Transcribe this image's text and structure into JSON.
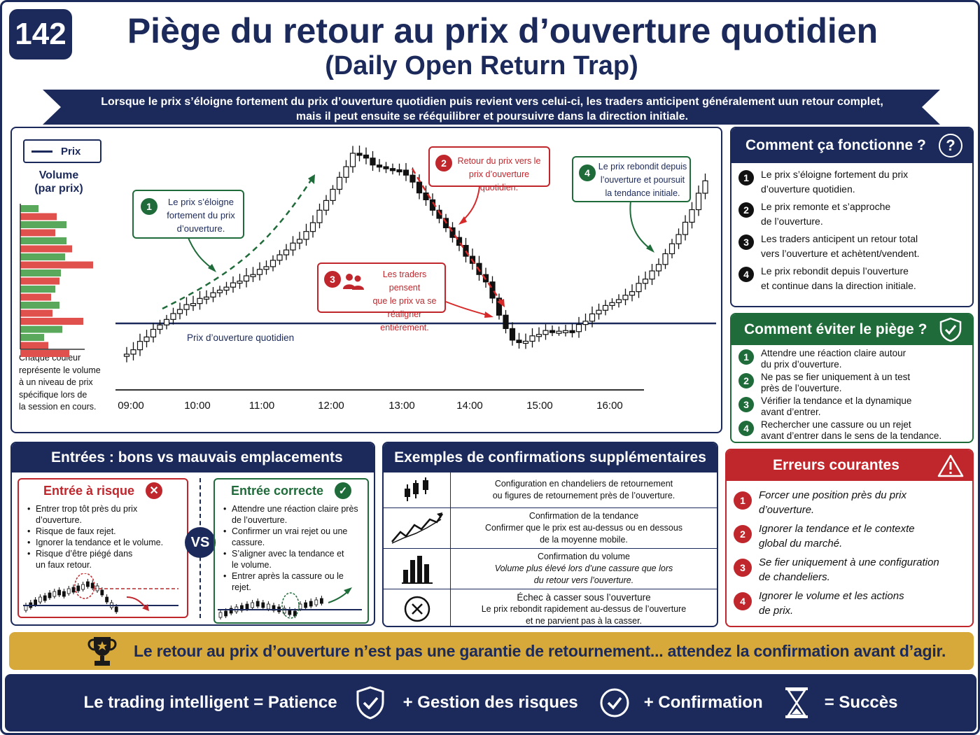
{
  "header": {
    "number": "142",
    "title": "Piège du retour au prix d’ouverture quotidien",
    "subtitle": "(Daily Open Return Trap)",
    "intro_line1": "Lorsque le prix s’éloigne fortement du prix d’ouverture quotidien puis revient vers celui-ci, les traders anticipent généralement uun retour complet,",
    "intro_line2": "mais il peut ensuite se rééquilibrer et poursuivre dans la direction initiale."
  },
  "chart": {
    "legend_label": "Prix",
    "volume_title_1": "Volume",
    "volume_title_2": "(par prix)",
    "volume_note": [
      "Chaque couleur",
      "représente le volume",
      "à un niveau de prix",
      "spécifique lors de",
      "la session en cours."
    ],
    "open_line_label": "Prix d’ouverture quotidien",
    "time_labels": [
      "09:00",
      "10:00",
      "11:00",
      "12:00",
      "13:00",
      "14:00",
      "15:00",
      "16:00"
    ],
    "callouts": [
      {
        "n": "1",
        "lines": [
          "Le prix s’éloigne",
          "fortement du prix",
          "d’ouverture."
        ]
      },
      {
        "n": "2",
        "lines": [
          "Retour du prix vers le",
          "prix d’ouverture quotidien."
        ]
      },
      {
        "n": "3",
        "lines": [
          "Les traders pensent",
          "que le prix va se",
          "réaligner entièrement."
        ]
      },
      {
        "n": "4",
        "lines": [
          "Le prix rebondit depuis",
          "l’ouverture et poursuit",
          "la tendance initiale."
        ]
      }
    ]
  },
  "how": {
    "title": "Comment ça fonctionne ?",
    "items": [
      {
        "n": "1",
        "l1": "Le prix s’éloigne fortement du prix",
        "l2": "d’ouverture quotidien."
      },
      {
        "n": "2",
        "l1": "Le prix remonte et s’approche",
        "l2": "de l’ouverture."
      },
      {
        "n": "3",
        "l1": "Les traders anticipent un retour total",
        "l2": "vers l’ouverture et achètent/vendent."
      },
      {
        "n": "4",
        "l1": "Le prix rebondit depuis l’ouverture",
        "l2": "et continue dans la direction initiale."
      }
    ]
  },
  "avoid": {
    "title": "Comment éviter le piège ?",
    "items": [
      {
        "n": "1",
        "l1": "Attendre une réaction claire autour",
        "l2": "du prix d’ouverture."
      },
      {
        "n": "2",
        "l1": "Ne pas se fier uniquement à un test",
        "l2": "près de l’ouverture."
      },
      {
        "n": "3",
        "l1": "Vérifier la tendance et la dynamique",
        "l2": "avant d’entrer."
      },
      {
        "n": "4",
        "l1": "Rechercher une cassure ou un rejet",
        "l2": "avant d’entrer dans le sens de la tendance."
      }
    ]
  },
  "entries": {
    "title": "Entrées : bons vs mauvais emplacements",
    "bad_title": "Entrée à risque",
    "bad_items": [
      "Entrer trop tôt près du prix d’ouverture.",
      "Risque de faux rejet.",
      "Ignorer la tendance et le volume.",
      "Risque d’être piégé dans\nun faux retour."
    ],
    "vs": "VS",
    "good_title": "Entrée correcte",
    "good_items": [
      "Attendre une réaction claire près\nde l’ouverture.",
      "Confirmer un vrai rejet ou une\ncassure.",
      "S’aligner avec la tendance et\nle volume.",
      "Entrer après la cassure ou le rejet."
    ]
  },
  "confirm": {
    "title": "Exemples de confirmations supplémentaires",
    "rows": [
      {
        "icon": "candlestick-icon",
        "l1": "Configuration en chandeliers de retournement",
        "l2": "ou figures de retournement près de l’ouverture.",
        "l3": ""
      },
      {
        "icon": "trend-line-icon",
        "l1": "Confirmation de la tendance",
        "l2": "Confirmer que le prix est au-dessus ou en dessous",
        "l3": "de la moyenne mobile."
      },
      {
        "icon": "volume-bars-icon",
        "l1": "Confirmation du volume",
        "l2": "Volume plus élevé lors d’une cassure que lors",
        "l3": "du retour vers l’ouverture."
      },
      {
        "icon": "x-circle-icon",
        "l1": "Échec à casser sous l’ouverture",
        "l2": "Le prix rebondit rapidement au-dessus de l’ouverture",
        "l3": "et ne parvient pas à la casser."
      }
    ]
  },
  "errors": {
    "title": "Erreurs courantes",
    "items": [
      {
        "n": "1",
        "l1": "Forcer une position près du prix",
        "l2": "d’ouverture."
      },
      {
        "n": "2",
        "l1": "Ignorer la tendance et le contexte",
        "l2": "global du marché."
      },
      {
        "n": "3",
        "l1": "Se fier uniquement à une configuration",
        "l2": "de chandeliers."
      },
      {
        "n": "4",
        "l1": "Ignorer le volume et les actions",
        "l2": "de prix."
      }
    ]
  },
  "banner": "Le retour au prix d’ouverture n’est pas une garantie de retournement... attendez la confirmation avant d’agir.",
  "footer": {
    "part1": "Le trading intelligent = Patience",
    "part2": "+ Gestion des risques",
    "part3": "+ Confirmation",
    "part4": "= Succès"
  },
  "colors": {
    "navy": "#1b2a5a",
    "green": "#1f6b3a",
    "red": "#c0272d",
    "gold": "#d6a93a"
  }
}
